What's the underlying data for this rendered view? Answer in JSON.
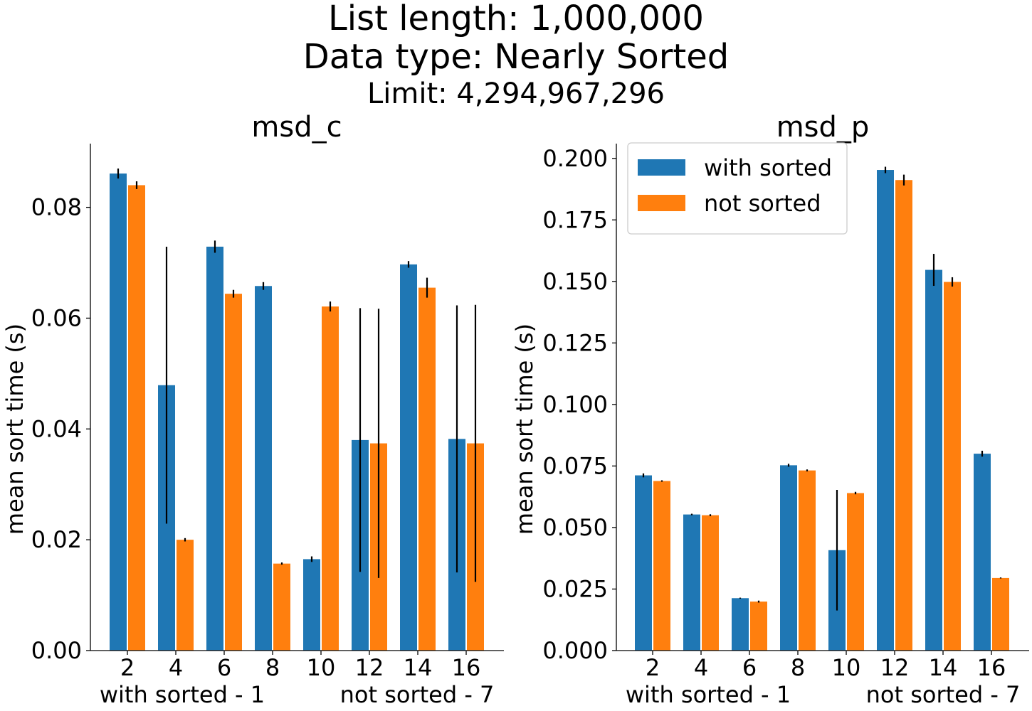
{
  "title_line1": "List length: 1,000,000",
  "title_line2": "Data type: Nearly Sorted",
  "title_line3": "Limit: 4,294,967,296",
  "colors": {
    "with_sorted": "#1f77b4",
    "not_sorted": "#ff7f0e",
    "error_bar": "#000000"
  },
  "chart_data": [
    {
      "type": "bar",
      "title": "msd_c",
      "ylabel": "mean sort time (s)",
      "xlabel_left": "with sorted - 1",
      "xlabel_right": "not sorted - 7",
      "categories": [
        "2",
        "4",
        "6",
        "8",
        "10",
        "12",
        "14",
        "16"
      ],
      "ylim": [
        0,
        0.0915
      ],
      "yticks": [
        0.0,
        0.02,
        0.04,
        0.06,
        0.08
      ],
      "ytick_labels": [
        "0.00",
        "0.02",
        "0.04",
        "0.06",
        "0.08"
      ],
      "grid": false,
      "series": [
        {
          "name": "with sorted",
          "values": [
            0.0861,
            0.0479,
            0.0729,
            0.0658,
            0.0165,
            0.038,
            0.0697,
            0.0382
          ],
          "errors": [
            0.0009,
            0.025,
            0.0011,
            0.0007,
            0.0005,
            0.0238,
            0.0006,
            0.0241
          ]
        },
        {
          "name": "not sorted",
          "values": [
            0.084,
            0.02,
            0.0644,
            0.0157,
            0.0621,
            0.0374,
            0.0655,
            0.0374
          ],
          "errors": [
            0.0007,
            0.0003,
            0.0007,
            0.0002,
            0.0009,
            0.0243,
            0.0018,
            0.025
          ]
        }
      ]
    },
    {
      "type": "bar",
      "title": "msd_p",
      "ylabel": "mean sort time (s)",
      "xlabel_left": "with sorted - 1",
      "xlabel_right": "not sorted - 7",
      "categories": [
        "2",
        "4",
        "6",
        "8",
        "10",
        "12",
        "14",
        "16"
      ],
      "ylim": [
        0,
        0.206
      ],
      "yticks": [
        0.0,
        0.025,
        0.05,
        0.075,
        0.1,
        0.125,
        0.15,
        0.175,
        0.2
      ],
      "ytick_labels": [
        "0.000",
        "0.025",
        "0.050",
        "0.075",
        "0.100",
        "0.125",
        "0.150",
        "0.175",
        "0.200"
      ],
      "grid": false,
      "legend": {
        "placement": "top-left",
        "entries": [
          "with sorted",
          "not sorted"
        ]
      },
      "series": [
        {
          "name": "with sorted",
          "values": [
            0.0712,
            0.0553,
            0.0213,
            0.0753,
            0.0408,
            0.1953,
            0.1547,
            0.08
          ],
          "errors": [
            0.0008,
            0.0003,
            0.0002,
            0.0006,
            0.0245,
            0.0013,
            0.0065,
            0.0012
          ]
        },
        {
          "name": "not sorted",
          "values": [
            0.0689,
            0.055,
            0.0199,
            0.0732,
            0.064,
            0.1912,
            0.1498,
            0.0295
          ],
          "errors": [
            0.0003,
            0.0004,
            0.0004,
            0.0004,
            0.0005,
            0.0022,
            0.0019,
            0.0002
          ]
        }
      ]
    }
  ]
}
